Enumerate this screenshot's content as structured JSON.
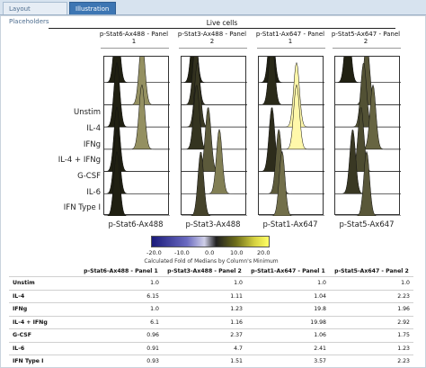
{
  "tabs": [
    {
      "label": "Layout Placeholders",
      "active": false
    },
    {
      "label": "Illustration",
      "active": true
    }
  ],
  "header": {
    "title": "Live cells"
  },
  "panels": [
    {
      "title_line1": "p-Stat6-Ax488 - Panel",
      "title_line2": "1",
      "axis_label": "p-Stat6-Ax488"
    },
    {
      "title_line1": "p-Stat3-Ax488 - Panel",
      "title_line2": "2",
      "axis_label": "p-Stat3-Ax488"
    },
    {
      "title_line1": "p-Stat1-Ax647 - Panel",
      "title_line2": "1",
      "axis_label": "p-Stat1-Ax647"
    },
    {
      "title_line1": "p-Stat5-Ax647 - Panel",
      "title_line2": "2",
      "axis_label": "p-Stat5-Ax647"
    }
  ],
  "rows": [
    "Unstim",
    "IL-4",
    "IFNg",
    "IL-4 + IFNg",
    "G-CSF",
    "IL-6",
    "IFN Type I"
  ],
  "legend": {
    "ticks": [
      "-20.0",
      "-10.0",
      "0.0",
      "10.0",
      "20.0"
    ],
    "caption": "Calculated Fold of Medians by Column's Minimum",
    "colors": {
      "low": "#1a1a7a",
      "mid": "#202020",
      "high": "#ffff66"
    }
  },
  "table": {
    "columns": [
      "p-Stat6-Ax488 - Panel 1",
      "p-Stat3-Ax488 - Panel 2",
      "p-Stat1-Ax647 - Panel 1",
      "p-Stat5-Ax647 - Panel 2"
    ],
    "rows": [
      {
        "label": "Unstim",
        "values": [
          "1.0",
          "1.0",
          "1.0",
          "1.0"
        ]
      },
      {
        "label": "IL-4",
        "values": [
          "6.15",
          "1.11",
          "1.04",
          "2.23"
        ]
      },
      {
        "label": "IFNg",
        "values": [
          "1.0",
          "1.23",
          "19.8",
          "1.96"
        ]
      },
      {
        "label": "IL-4 + IFNg",
        "values": [
          "6.1",
          "1.16",
          "19.98",
          "2.92"
        ]
      },
      {
        "label": "G-CSF",
        "values": [
          "0.96",
          "2.37",
          "1.06",
          "1.75"
        ]
      },
      {
        "label": "IL-6",
        "values": [
          "0.91",
          "4.7",
          "2.41",
          "1.23"
        ]
      },
      {
        "label": "IFN Type I",
        "values": [
          "0.93",
          "1.51",
          "3.57",
          "2.23"
        ]
      }
    ]
  },
  "histogram_fold": [
    [
      1.0,
      6.15,
      1.0,
      6.1,
      0.96,
      0.91,
      0.93
    ],
    [
      1.0,
      1.11,
      1.23,
      1.16,
      2.37,
      4.7,
      1.51
    ],
    [
      1.0,
      1.04,
      19.8,
      19.98,
      1.06,
      2.41,
      3.57
    ],
    [
      1.0,
      2.23,
      1.96,
      2.92,
      1.75,
      1.23,
      2.23
    ]
  ]
}
